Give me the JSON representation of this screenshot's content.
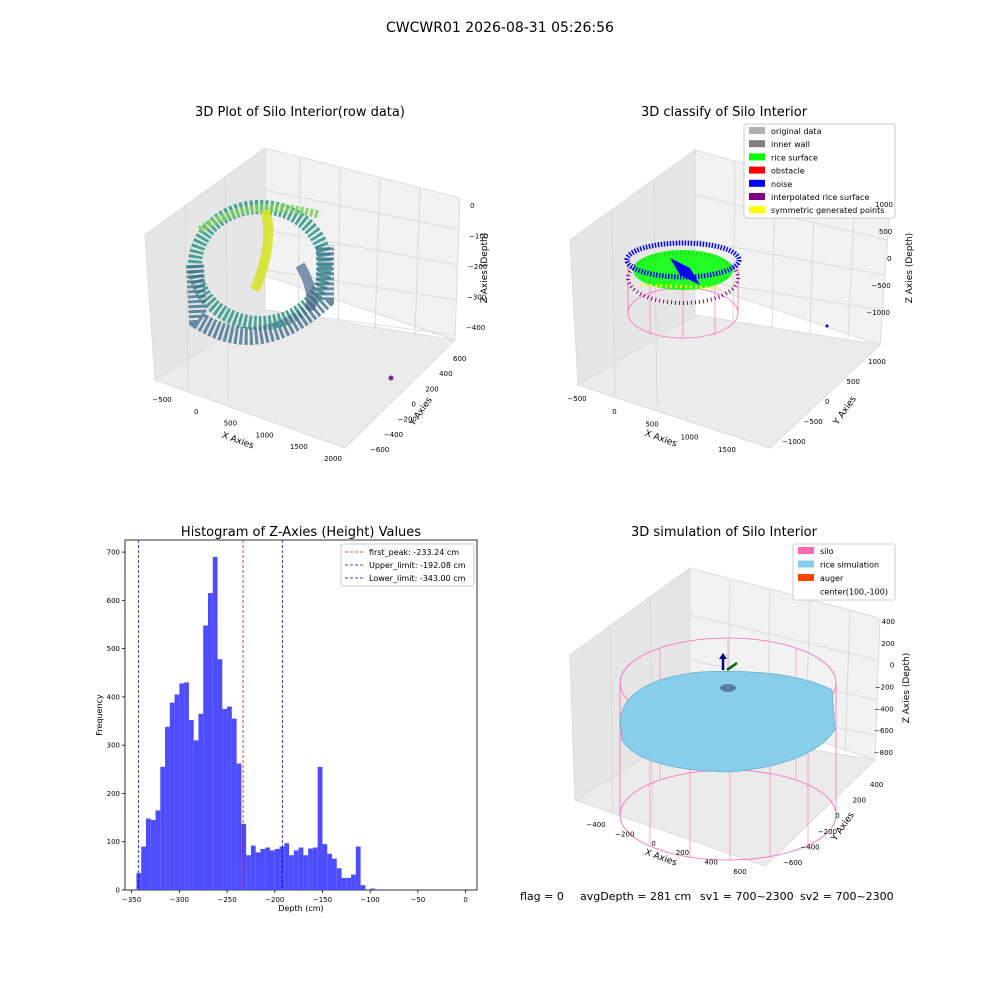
{
  "suptitle": "CWCWR01 2026-08-31 05:26:56",
  "footer": {
    "flag": "flag = 0",
    "avg": "avgDepth = 281 cm",
    "sv1": "sv1 = 700~2300",
    "sv2": "sv2 = 700~2300"
  },
  "chart_data": [
    {
      "type": "scatter",
      "title": "3D Plot of Silo Interior(row data)",
      "xlabel": "X Axies",
      "ylabel": "Y Axies",
      "zlabel": "Z Axies (Depth)",
      "x_ticks": [
        "-500",
        "0",
        "500",
        "1000",
        "1500",
        "2000"
      ],
      "y_ticks": [
        "-600",
        "-400",
        "-200",
        "0",
        "200",
        "400",
        "600"
      ],
      "z_ticks": [
        "0",
        "-100",
        "-200",
        "-300",
        "-400"
      ],
      "colormap": "viridis"
    },
    {
      "type": "scatter",
      "title": "3D classify of Silo Interior",
      "xlabel": "X Axies",
      "ylabel": "Y Axies",
      "zlabel": "Z Axies (Depth)",
      "x_ticks": [
        "-500",
        "0",
        "500",
        "1000",
        "1500"
      ],
      "y_ticks": [
        "-1000",
        "-500",
        "0",
        "500",
        "1000"
      ],
      "z_ticks": [
        "1000",
        "500",
        "0",
        "-500",
        "-1000"
      ],
      "legend": [
        {
          "label": "original data",
          "color": "#b0b0b0"
        },
        {
          "label": "inner wall",
          "color": "#808080"
        },
        {
          "label": "rice surface",
          "color": "#00ff00"
        },
        {
          "label": "obstacle",
          "color": "#ff0000"
        },
        {
          "label": "noise",
          "color": "#0000ff"
        },
        {
          "label": "interpolated rice surface",
          "color": "#800080"
        },
        {
          "label": "symmetric generated points",
          "color": "#ffff00"
        }
      ],
      "legend_position": "top-right"
    },
    {
      "type": "bar",
      "title": "Histogram of Z-Axies (Height) Values",
      "xlabel": "Depth (cm)",
      "ylabel": "Frequency",
      "bin_width": 5,
      "bin_start": -345,
      "values": [
        35,
        90,
        148,
        145,
        165,
        255,
        338,
        388,
        405,
        428,
        430,
        352,
        310,
        365,
        548,
        615,
        690,
        478,
        375,
        380,
        355,
        262,
        137,
        72,
        92,
        78,
        85,
        88,
        82,
        85,
        90,
        97,
        72,
        82,
        88,
        72,
        86,
        88,
        255,
        95,
        75,
        65,
        45,
        25,
        25,
        32,
        90,
        10,
        0,
        3
      ],
      "xlim": [
        -357,
        12
      ],
      "ylim": [
        0,
        725
      ],
      "x_ticks": [
        -350,
        -300,
        -250,
        -200,
        -150,
        -100,
        -50,
        0
      ],
      "y_ticks": [
        0,
        100,
        200,
        300,
        400,
        500,
        600,
        700
      ],
      "bar_color": "#4d4dff",
      "vlines": [
        {
          "x": -233.24,
          "color": "#ff0000",
          "label": "first_peak: -233.24 cm"
        },
        {
          "x": -192.08,
          "color": "#0000cc",
          "label": "Upper_limit: -192.08 cm"
        },
        {
          "x": -343.0,
          "color": "#0000cc",
          "label": "Lower_limit: -343.00 cm"
        }
      ],
      "legend_position": "top-right"
    },
    {
      "type": "scatter",
      "title": "3D simulation of Silo Interior",
      "xlabel": "X Axies",
      "ylabel": "Y Axies",
      "zlabel": "Z Axies (Depth)",
      "x_ticks": [
        "-400",
        "-200",
        "0",
        "200",
        "400",
        "600"
      ],
      "y_ticks": [
        "-600",
        "-400",
        "-200",
        "0",
        "200",
        "400"
      ],
      "z_ticks": [
        "400",
        "200",
        "0",
        "-200",
        "-400",
        "-600",
        "-800"
      ],
      "legend": [
        {
          "label": "silo",
          "color": "#ff69b4"
        },
        {
          "label": "rice simulation",
          "color": "#87ceeb"
        },
        {
          "label": "auger",
          "color": "#ff4500"
        },
        {
          "label": "center(100,-100)",
          "color": ""
        }
      ],
      "legend_position": "top-right"
    }
  ]
}
